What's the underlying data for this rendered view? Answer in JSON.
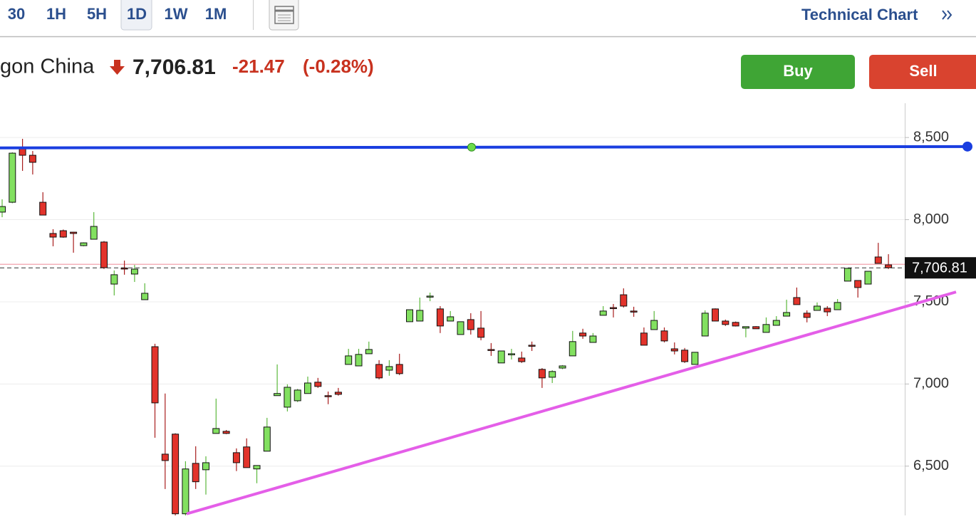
{
  "toolbar": {
    "intervals": [
      "30",
      "1H",
      "5H",
      "1D",
      "1W",
      "1M"
    ],
    "selected": 3,
    "link": "Technical Chart"
  },
  "quote": {
    "name": "gon China",
    "price": "7,706.81",
    "change": "-21.47",
    "change_percent": "(-0.28%)"
  },
  "buttons": {
    "buy": "Buy",
    "sell": "Sell"
  },
  "chart_data": {
    "type": "candlestick",
    "open": [
      8046,
      8106,
      8435,
      8392,
      8106,
      7916,
      7933,
      7924,
      7842,
      7881,
      7864,
      7608,
      7706,
      7669,
      7513,
      7227,
      6573,
      6695,
      6210,
      6517,
      6478,
      6699,
      6712,
      6582,
      6617,
      6483,
      6591,
      6929,
      6859,
      6898,
      6942,
      7011,
      6929,
      6950,
      7119,
      7110,
      7184,
      7119,
      7084,
      7119,
      7379,
      7383,
      7530,
      7457,
      7383,
      7301,
      7392,
      7340,
      7210,
      7128,
      7180,
      7158,
      7236,
      7089,
      7041,
      7097,
      7171,
      7310,
      7253,
      7418,
      7465,
      7543,
      7444,
      7310,
      7331,
      7323,
      7214,
      7206,
      7119,
      7292,
      7457,
      7383,
      7375,
      7340,
      7349,
      7314,
      7357,
      7413,
      7526,
      7431,
      7448,
      7461,
      7452,
      7626,
      7630,
      7608,
      7773,
      7725
    ],
    "high": [
      8124,
      8410,
      8492,
      8418,
      8167,
      7942,
      7940,
      7926,
      7862,
      8046,
      7870,
      7691,
      7751,
      7725,
      7613,
      7245,
      6942,
      6700,
      6530,
      6621,
      6560,
      6911,
      6720,
      6608,
      6669,
      6504,
      6794,
      7119,
      6998,
      6970,
      7045,
      7037,
      6954,
      6976,
      7214,
      7214,
      7258,
      7145,
      7145,
      7184,
      7452,
      7526,
      7556,
      7474,
      7444,
      7379,
      7431,
      7444,
      7249,
      7201,
      7214,
      7197,
      7258,
      7097,
      7084,
      7115,
      7323,
      7336,
      7310,
      7474,
      7487,
      7582,
      7470,
      7344,
      7444,
      7344,
      7253,
      7219,
      7193,
      7448,
      7460,
      7392,
      7380,
      7349,
      7352,
      7405,
      7413,
      7513,
      7587,
      7448,
      7496,
      7474,
      7517,
      7704,
      7630,
      7686,
      7859,
      7790
    ],
    "low": [
      8015,
      8100,
      8297,
      8275,
      8028,
      7838,
      7890,
      7799,
      7838,
      7881,
      7700,
      7539,
      7665,
      7621,
      7513,
      6673,
      6361,
      6180,
      6190,
      6361,
      6327,
      6699,
      6695,
      6470,
      6491,
      6396,
      6591,
      6929,
      6833,
      6890,
      6942,
      6976,
      6877,
      6929,
      7119,
      7110,
      7184,
      7028,
      7050,
      7054,
      7379,
      7383,
      7504,
      7310,
      7383,
      7301,
      7301,
      7266,
      7171,
      7128,
      7149,
      7128,
      7201,
      6976,
      7006,
      7090,
      7171,
      7275,
      7253,
      7418,
      7405,
      7465,
      7409,
      7236,
      7331,
      7253,
      7180,
      7128,
      7119,
      7292,
      7383,
      7353,
      7350,
      7284,
      7335,
      7314,
      7357,
      7413,
      7483,
      7375,
      7448,
      7413,
      7452,
      7626,
      7526,
      7608,
      7734,
      7699
    ],
    "close": [
      8080,
      8405,
      8392,
      8349,
      8028,
      7894,
      7894,
      7916,
      7859,
      7959,
      7708,
      7665,
      7702,
      7699,
      7552,
      6885,
      6534,
      6210,
      6483,
      6405,
      6521,
      6729,
      6699,
      6521,
      6491,
      6504,
      6738,
      6942,
      6980,
      6963,
      7006,
      6985,
      6924,
      6937,
      7171,
      7180,
      7210,
      7037,
      7106,
      7063,
      7452,
      7448,
      7535,
      7353,
      7409,
      7379,
      7331,
      7284,
      7206,
      7201,
      7184,
      7136,
      7232,
      7037,
      7076,
      7110,
      7258,
      7292,
      7292,
      7444,
      7461,
      7474,
      7439,
      7236,
      7387,
      7262,
      7201,
      7136,
      7193,
      7431,
      7383,
      7362,
      7353,
      7349,
      7336,
      7362,
      7387,
      7435,
      7483,
      7405,
      7474,
      7439,
      7496,
      7704,
      7587,
      7686,
      7734,
      7708
    ],
    "up_color": "#82e060",
    "down_color": "#e2332b",
    "ylim": [
      6200,
      8700
    ],
    "yticks": [
      {
        "value": 6500,
        "label": "6,500"
      },
      {
        "value": 7000,
        "label": "7,000"
      },
      {
        "value": 7500,
        "label": "7,500"
      },
      {
        "value": 8000,
        "label": "8,000"
      },
      {
        "value": 8500,
        "label": "8,500"
      }
    ],
    "grid": true,
    "prev_close": 7728.28,
    "last": {
      "value": 7706.81,
      "label": "7,706.81"
    },
    "lines": [
      {
        "color": "#1a3ee0",
        "values": [
          8437,
          8445
        ]
      },
      {
        "color": "#e45ee8",
        "values": [
          6210,
          7560
        ]
      }
    ]
  }
}
